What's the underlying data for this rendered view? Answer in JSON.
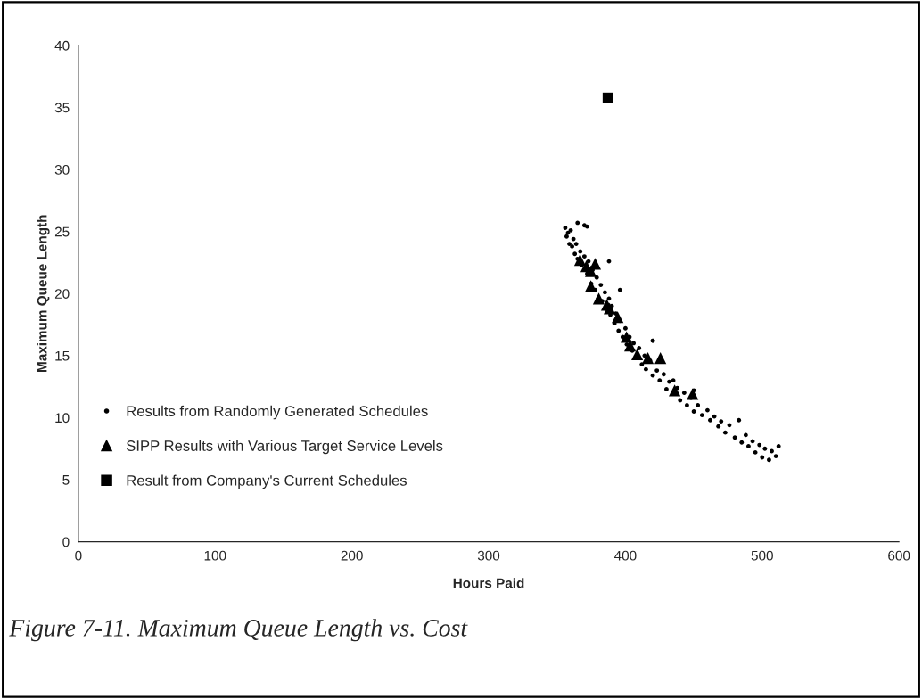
{
  "chart_data": {
    "type": "scatter",
    "xlabel": "Hours Paid",
    "ylabel": "Maximum Queue Length",
    "xlim": [
      0,
      600
    ],
    "xticks": [
      0,
      100,
      200,
      300,
      400,
      500,
      600
    ],
    "ylim": [
      0,
      40
    ],
    "yticks": [
      0,
      5,
      10,
      15,
      20,
      25,
      30,
      35,
      40
    ],
    "grid": false,
    "legend": "lower left",
    "annotations": [
      "Figure 7-11. Maximum Queue Length vs. Cost"
    ],
    "series": [
      {
        "name": "Results from Randomly Generated Schedules",
        "color": "#000000",
        "marker": "circle",
        "x": [
          356,
          357,
          358,
          359,
          360,
          361,
          362,
          363,
          364,
          365,
          365,
          367,
          368,
          370,
          370,
          372,
          373,
          375,
          376,
          378,
          379,
          380,
          382,
          383,
          385,
          388,
          389,
          390,
          392,
          393,
          395,
          396,
          398,
          400,
          401,
          403,
          405,
          406,
          410,
          412,
          414,
          415,
          418,
          420,
          420,
          423,
          425,
          428,
          430,
          432,
          435,
          438,
          440,
          443,
          445,
          448,
          450,
          450,
          453,
          456,
          460,
          462,
          465,
          468,
          470,
          473,
          476,
          480,
          483,
          485,
          488,
          490,
          493,
          495,
          498,
          500,
          502,
          505,
          507,
          510,
          512,
          388,
          396,
          420,
          372
        ],
        "values": [
          25.3,
          24.6,
          24.9,
          24.0,
          25.1,
          23.8,
          24.4,
          23.2,
          24.0,
          22.8,
          25.7,
          23.4,
          22.3,
          25.5,
          23.0,
          21.6,
          22.6,
          20.8,
          21.9,
          20.3,
          21.3,
          19.6,
          20.7,
          19.4,
          20.1,
          19.6,
          18.3,
          19.0,
          17.6,
          18.4,
          17.0,
          17.8,
          16.5,
          17.2,
          15.9,
          16.5,
          15.4,
          16.0,
          15.6,
          14.3,
          15.0,
          13.9,
          14.6,
          13.4,
          16.2,
          13.8,
          13.0,
          13.5,
          12.3,
          12.9,
          13.0,
          12.4,
          11.4,
          12.0,
          11.0,
          11.6,
          10.5,
          12.2,
          11.0,
          10.2,
          10.6,
          9.8,
          10.1,
          9.3,
          9.7,
          8.8,
          9.4,
          8.4,
          9.8,
          8.0,
          8.6,
          7.7,
          8.1,
          7.2,
          7.8,
          6.8,
          7.5,
          6.6,
          7.3,
          6.9,
          7.7,
          22.6,
          20.3,
          16.2,
          25.4
        ]
      },
      {
        "name": "SIPP Results with Various Target Service Levels",
        "color": "#000000",
        "marker": "triangle",
        "x": [
          366.8,
          371.4,
          377.9,
          374.7,
          374.7,
          380.5,
          386.4,
          388.4,
          394.3,
          400.8,
          403.4,
          408.6,
          416.4,
          425.6,
          436.0,
          449.1
        ],
        "values": [
          22.7,
          22.2,
          22.4,
          21.8,
          20.6,
          19.6,
          19.1,
          18.8,
          18.1,
          16.5,
          15.8,
          15.1,
          14.8,
          14.8,
          12.2,
          11.9
        ]
      },
      {
        "name": "Result from Company's Current Schedules",
        "color": "#000000",
        "marker": "square",
        "x": [
          387
        ],
        "values": [
          35.8
        ]
      }
    ]
  }
}
